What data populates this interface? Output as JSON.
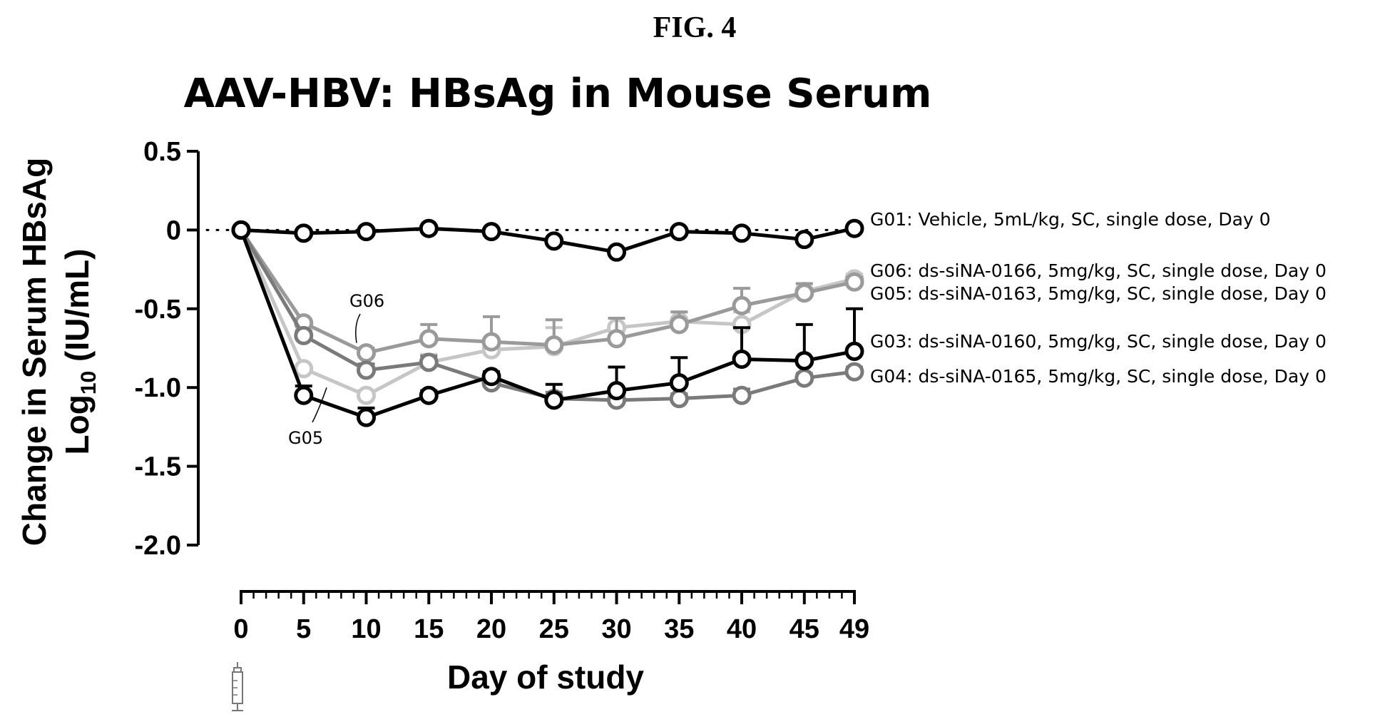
{
  "figure_label": "FIG. 4",
  "chart_data": {
    "type": "line",
    "title": "AAV-HBV: HBsAg in Mouse Serum",
    "ylabel_line1": "Change in Serum HBsAg",
    "ylabel_line2_prefix": "Log",
    "ylabel_line2_sub": "10",
    "ylabel_line2_suffix": " (IU/mL)",
    "xlabel": "Day of study",
    "ylim": [
      -2.0,
      0.5
    ],
    "xlim": [
      0,
      49
    ],
    "y_ticks": [
      0.5,
      0,
      -0.5,
      -1.0,
      -1.5,
      -2.0
    ],
    "y_tick_labels": [
      "0.5",
      "0",
      "-0.5",
      "-1.0",
      "-1.5",
      "-2.0"
    ],
    "x_ticks": [
      0,
      5,
      10,
      15,
      20,
      25,
      30,
      35,
      40,
      45,
      49
    ],
    "x_tick_labels": [
      "0",
      "5",
      "10",
      "15",
      "20",
      "25",
      "30",
      "35",
      "40",
      "45",
      "49"
    ],
    "reference_line": {
      "y": 0,
      "style": "dotted"
    },
    "x": [
      0,
      5,
      10,
      15,
      20,
      25,
      30,
      35,
      40,
      45,
      49
    ],
    "series": [
      {
        "id": "G01",
        "name": "G01: Vehicle, 5mL/kg, SC, single dose, Day 0",
        "color": "#000000",
        "values": [
          0,
          -0.02,
          -0.01,
          0.01,
          -0.01,
          -0.07,
          -0.14,
          -0.01,
          -0.02,
          -0.06,
          0.01
        ],
        "errors": [
          0,
          0,
          0,
          0,
          0,
          0,
          0,
          0,
          0,
          0,
          0
        ]
      },
      {
        "id": "G06",
        "name": "G06: ds-siNA-0166, 5mg/kg, SC, single dose, Day 0",
        "color": "#9a9a9a",
        "values": [
          0,
          -0.59,
          -0.78,
          -0.69,
          -0.71,
          -0.73,
          -0.69,
          -0.6,
          -0.48,
          -0.4,
          -0.33
        ],
        "errors": [
          0,
          0.02,
          0.03,
          0.09,
          0.16,
          0.16,
          0.13,
          0.08,
          0.11,
          0.06,
          0.03
        ]
      },
      {
        "id": "G05",
        "name": "G05: ds-siNA-0163, 5mg/kg, SC, single dose, Day 0",
        "color": "#c6c6c6",
        "values": [
          0,
          -0.88,
          -1.05,
          -0.84,
          -0.76,
          -0.74,
          -0.62,
          -0.58,
          -0.6,
          -0.39,
          -0.31
        ],
        "errors": [
          0,
          0.02,
          0.03,
          0.05,
          0.07,
          0.12,
          0.06,
          0.06,
          0.08,
          0.05,
          0.03
        ]
      },
      {
        "id": "G03",
        "name": "G03: ds-siNA-0160, 5mg/kg, SC, single dose, Day 0",
        "color": "#000000",
        "values": [
          0,
          -1.05,
          -1.19,
          -1.05,
          -0.93,
          -1.08,
          -1.02,
          -0.97,
          -0.82,
          -0.83,
          -0.77
        ],
        "errors": [
          0,
          0.06,
          0.06,
          0.03,
          0.03,
          0.1,
          0.15,
          0.16,
          0.2,
          0.23,
          0.27
        ]
      },
      {
        "id": "G04",
        "name": "G04: ds-siNA-0165, 5mg/kg, SC, single dose, Day 0",
        "color": "#7a7a7a",
        "values": [
          0,
          -0.67,
          -0.89,
          -0.84,
          -0.97,
          -1.07,
          -1.08,
          -1.07,
          -1.05,
          -0.94,
          -0.9
        ],
        "errors": [
          0,
          0.03,
          0.04,
          0.04,
          0.03,
          0.04,
          0.03,
          0.03,
          0.04,
          0.03,
          0.03
        ]
      }
    ],
    "annotations": [
      {
        "text": "G06",
        "series": "G06"
      },
      {
        "text": "G05",
        "series": "G05"
      }
    ],
    "dosing_marker": {
      "icon": "syringe-icon",
      "day": 0
    }
  }
}
